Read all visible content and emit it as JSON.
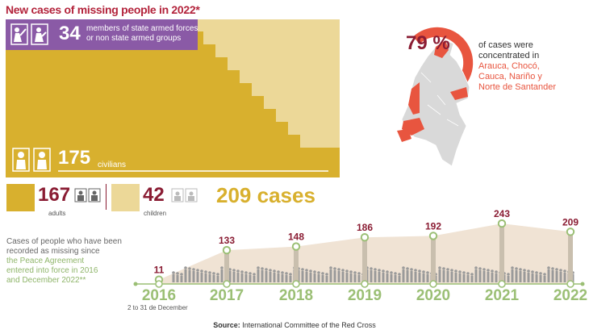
{
  "title": "New cases of missing people in 2022*",
  "armed": {
    "count": "34",
    "line1": "members of state armed forces",
    "line2": "or  non state armed groups"
  },
  "civilians": {
    "count": "175",
    "label": "civilians"
  },
  "adults": {
    "count": "167",
    "label": "adults"
  },
  "children": {
    "count": "42",
    "label": "children"
  },
  "total": "209 cases",
  "concentration": {
    "percent": "79 %",
    "line1": "of cases were",
    "line2": "concentrated in",
    "regions1": "Arauca, Chocó,",
    "regions2": "Cauca, Nariño y",
    "regions3": "Norte de Santander"
  },
  "note": {
    "line1": "Cases of people who have been",
    "line2": "recorded as missing since",
    "line3": "the Peace Agreement",
    "line4": "entered into force in 2016",
    "line5": "and December 2022**"
  },
  "subyear": "2 to 31 de December",
  "source_prefix": "Source:",
  "source_text": " International Committee of the Red Cross",
  "colors": {
    "gold": "#d8b02e",
    "pale": "#ecd898",
    "purple": "#8a5aa6",
    "crimson": "#8a1c33",
    "coral": "#e8553f",
    "green": "#9bbf75",
    "area": "#f0e3d4"
  },
  "chart_data": {
    "type": "area",
    "title": "",
    "x": [
      "2016",
      "2017",
      "2018",
      "2019",
      "2020",
      "2021",
      "2022"
    ],
    "values": [
      11,
      133,
      148,
      186,
      192,
      243,
      209
    ],
    "ylim": [
      0,
      260
    ]
  }
}
